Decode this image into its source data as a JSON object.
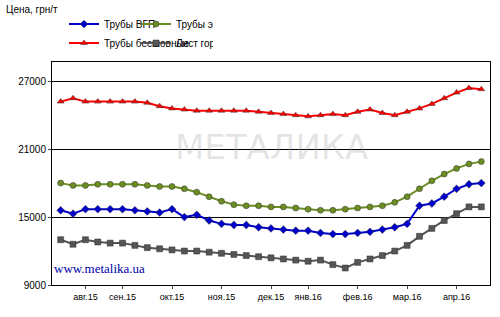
{
  "chart_data": {
    "type": "line",
    "y_label": "Цена, грн/т",
    "annotations": [
      "МЕТАЛИКА",
      "www.metalika.ua"
    ],
    "categories": [
      null,
      null,
      "авг.15",
      null,
      null,
      "сен.15",
      null,
      null,
      null,
      "окт.15",
      null,
      null,
      null,
      "ноя.15",
      null,
      null,
      null,
      "дек.15",
      null,
      null,
      "янв.16",
      null,
      null,
      null,
      "фев.16",
      null,
      null,
      null,
      "мар.16",
      null,
      null,
      null,
      "апр.16",
      null,
      null
    ],
    "series": [
      {
        "name": "Трубы ВГП",
        "color": "#0000cc",
        "marker": "diamond",
        "line_style": "solid",
        "values": [
          15600,
          15300,
          15700,
          15700,
          15700,
          15700,
          15600,
          15500,
          15400,
          15700,
          15000,
          15200,
          14700,
          14400,
          14300,
          14300,
          14100,
          14000,
          13900,
          13800,
          13800,
          13600,
          13500,
          13500,
          13600,
          13700,
          13900,
          14100,
          14400,
          16000,
          16200,
          16800,
          17500,
          17900,
          18000
        ]
      },
      {
        "name": "Трубы электросварные",
        "color": "#6b8e23",
        "marker": "circle",
        "line_style": "solid",
        "values": [
          18000,
          17800,
          17800,
          17900,
          17900,
          17900,
          17900,
          17800,
          17700,
          17700,
          17500,
          17200,
          16800,
          16400,
          16100,
          16000,
          16000,
          15900,
          15900,
          15800,
          15700,
          15600,
          15600,
          15700,
          15800,
          15900,
          16000,
          16300,
          16800,
          17500,
          18200,
          18800,
          19300,
          19700,
          19900
        ]
      },
      {
        "name": "Трубы бесшовные",
        "color": "#ff0000",
        "marker": "triangle-up",
        "line_style": "solid",
        "values": [
          25200,
          25500,
          25200,
          25200,
          25200,
          25200,
          25200,
          25100,
          24800,
          24600,
          24500,
          24400,
          24400,
          24400,
          24400,
          24400,
          24300,
          24200,
          24100,
          24000,
          23900,
          24000,
          24100,
          24000,
          24300,
          24500,
          24200,
          24000,
          24300,
          24600,
          25000,
          25500,
          26000,
          26400,
          26300
        ]
      },
      {
        "name": "Лист горячекатаный",
        "color": "#555555",
        "marker": "square",
        "line_style": "solid",
        "values": [
          13000,
          12600,
          13000,
          12800,
          12700,
          12700,
          12500,
          12300,
          12200,
          12100,
          12000,
          12000,
          11900,
          11800,
          11700,
          11600,
          11500,
          11400,
          11300,
          11200,
          11100,
          11200,
          10800,
          10500,
          11000,
          11300,
          11600,
          12000,
          12500,
          13300,
          14000,
          14700,
          15300,
          15900,
          15900
        ]
      }
    ],
    "ylim": [
      9000,
      28700
    ],
    "yticks": [
      9000,
      15000,
      21000,
      27000
    ],
    "grid": true,
    "legend": "top"
  }
}
